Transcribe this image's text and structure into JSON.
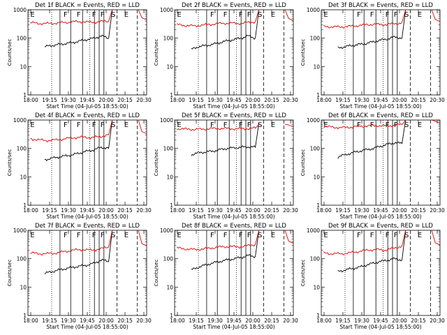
{
  "figure": {
    "xlabel": "Start Time (04-Jul-05 18:55:00)",
    "ylabel": "Counts/sec",
    "x_tick_labels": [
      "18:00",
      "19:15",
      "19:30",
      "19:45",
      "20:00",
      "20:15",
      "20:30"
    ],
    "y_tick_labels": [
      "1",
      "10",
      "100",
      "1000"
    ],
    "colors": {
      "events": "#000000",
      "lld": "#e00000",
      "axes": "#000000"
    }
  },
  "chart_data": [
    {
      "type": "line",
      "title": "Det 1f BLACK = Events, RED = LLD",
      "xlabel": "Start Time (04-Jul-05 18:55:00)",
      "ylabel": "Counts/sec",
      "ylim": [
        1,
        1000
      ],
      "yscale": "log",
      "markers": [
        "E",
        "F",
        "F",
        "F",
        "F",
        "S",
        "E"
      ],
      "series": [
        {
          "name": "BLACK = Events",
          "color": "#000000",
          "values": [
            50,
            55,
            60,
            65,
            70,
            80,
            90,
            100,
            120,
            100,
            1000
          ]
        },
        {
          "name": "RED = LLD",
          "color": "#e00000",
          "values": [
            350,
            330,
            330,
            340,
            360,
            380,
            380,
            360,
            380,
            400,
            1000
          ]
        }
      ]
    },
    {
      "type": "line",
      "title": "Det 2f BLACK = Events, RED = LLD",
      "xlabel": "Start Time (04-Jul-05 18:55:00)",
      "ylabel": "Counts/sec",
      "ylim": [
        1,
        1000
      ],
      "yscale": "log",
      "markers": [
        "E",
        "F",
        "F",
        "F",
        "F",
        "S",
        "E"
      ],
      "series": [
        {
          "name": "BLACK = Events",
          "color": "#000000",
          "values": [
            40,
            50,
            55,
            60,
            70,
            80,
            90,
            100,
            120,
            100,
            1000
          ]
        },
        {
          "name": "RED = LLD",
          "color": "#e00000",
          "values": [
            300,
            280,
            270,
            290,
            310,
            330,
            340,
            330,
            350,
            380,
            1000
          ]
        }
      ]
    },
    {
      "type": "line",
      "title": "Det 3f BLACK = Events, RED = LLD",
      "xlabel": "Start Time (04-Jul-05 18:55:00)",
      "ylabel": "Counts/sec",
      "ylim": [
        1,
        1000
      ],
      "yscale": "log",
      "markers": [
        "E",
        "F",
        "F",
        "F",
        "F",
        "S",
        "E"
      ],
      "series": [
        {
          "name": "BLACK = Events",
          "color": "#000000",
          "values": [
            45,
            50,
            55,
            60,
            65,
            75,
            85,
            95,
            110,
            100,
            1000
          ]
        },
        {
          "name": "RED = LLD",
          "color": "#e00000",
          "values": [
            260,
            250,
            250,
            260,
            280,
            300,
            310,
            300,
            320,
            350,
            1000
          ]
        }
      ]
    },
    {
      "type": "line",
      "title": "Det 4f BLACK = Events, RED = LLD",
      "xlabel": "Start Time (04-Jul-05 18:55:00)",
      "ylabel": "Counts/sec",
      "ylim": [
        1,
        1000
      ],
      "yscale": "log",
      "markers": [
        "E",
        "F",
        "F",
        "F",
        "F",
        "S",
        "E"
      ],
      "series": [
        {
          "name": "BLACK = Events",
          "color": "#000000",
          "values": [
            40,
            45,
            50,
            55,
            60,
            70,
            80,
            90,
            110,
            100,
            1000
          ]
        },
        {
          "name": "RED = LLD",
          "color": "#e00000",
          "values": [
            220,
            200,
            190,
            200,
            220,
            240,
            250,
            240,
            260,
            300,
            1000
          ]
        }
      ]
    },
    {
      "type": "line",
      "title": "Det 5f BLACK = Events, RED = LLD",
      "xlabel": "Start Time (04-Jul-05 18:55:00)",
      "ylabel": "Counts/sec",
      "ylim": [
        1,
        1000
      ],
      "yscale": "log",
      "markers": [
        "E",
        "F",
        "F",
        "F",
        "F",
        "S",
        "E"
      ],
      "series": [
        {
          "name": "BLACK = Events",
          "color": "#000000",
          "values": [
            60,
            70,
            75,
            80,
            90,
            100,
            105,
            110,
            115,
            110,
            800
          ]
        },
        {
          "name": "RED = LLD",
          "color": "#e00000",
          "values": [
            500,
            480,
            470,
            480,
            500,
            510,
            500,
            490,
            500,
            520,
            700
          ]
        }
      ]
    },
    {
      "type": "line",
      "title": "Det 6f BLACK = Events, RED = LLD",
      "xlabel": "Start Time (04-Jul-05 18:55:00)",
      "ylabel": "Counts/sec",
      "ylim": [
        1,
        1000
      ],
      "yscale": "log",
      "markers": [
        "E",
        "F",
        "F",
        "F",
        "F",
        "S",
        "E"
      ],
      "series": [
        {
          "name": "BLACK = Events",
          "color": "#000000",
          "values": [
            50,
            60,
            70,
            80,
            90,
            100,
            120,
            140,
            160,
            150,
            1000
          ]
        },
        {
          "name": "RED = LLD",
          "color": "#e00000",
          "values": [
            600,
            560,
            540,
            560,
            600,
            620,
            640,
            620,
            650,
            700,
            1000
          ]
        }
      ]
    },
    {
      "type": "line",
      "title": "Det 7f BLACK = Events, RED = LLD",
      "xlabel": "Start Time (04-Jul-05 18:55:00)",
      "ylabel": "Counts/sec",
      "ylim": [
        1,
        1000
      ],
      "yscale": "log",
      "markers": [
        "E",
        "F",
        "F",
        "F",
        "F",
        "S",
        "E"
      ],
      "series": [
        {
          "name": "BLACK = Events",
          "color": "#000000",
          "values": [
            30,
            35,
            40,
            45,
            50,
            55,
            60,
            70,
            90,
            80,
            1000
          ]
        },
        {
          "name": "RED = LLD",
          "color": "#e00000",
          "values": [
            160,
            150,
            150,
            160,
            180,
            200,
            210,
            200,
            220,
            260,
            1000
          ]
        }
      ]
    },
    {
      "type": "line",
      "title": "Det 8f BLACK = Events, RED = LLD",
      "xlabel": "Start Time (04-Jul-05 18:55:00)",
      "ylabel": "Counts/sec",
      "ylim": [
        1,
        1000
      ],
      "yscale": "log",
      "markers": [
        "E",
        "F",
        "F",
        "F",
        "F",
        "S",
        "E"
      ],
      "series": [
        {
          "name": "BLACK = Events",
          "color": "#000000",
          "values": [
            40,
            50,
            60,
            70,
            80,
            90,
            100,
            110,
            130,
            120,
            1000
          ]
        },
        {
          "name": "RED = LLD",
          "color": "#e00000",
          "values": [
            240,
            220,
            210,
            220,
            240,
            260,
            270,
            260,
            280,
            320,
            1000
          ]
        }
      ]
    },
    {
      "type": "line",
      "title": "Det 9f BLACK = Events, RED = LLD",
      "xlabel": "Start Time (04-Jul-05 18:55:00)",
      "ylabel": "Counts/sec",
      "ylim": [
        1,
        1000
      ],
      "yscale": "log",
      "markers": [
        "E",
        "F",
        "F",
        "F",
        "F",
        "S",
        "E"
      ],
      "series": [
        {
          "name": "BLACK = Events",
          "color": "#000000",
          "values": [
            35,
            40,
            45,
            50,
            60,
            70,
            80,
            90,
            100,
            90,
            1000
          ]
        },
        {
          "name": "RED = LLD",
          "color": "#e00000",
          "values": [
            160,
            150,
            150,
            160,
            180,
            200,
            210,
            200,
            230,
            280,
            1000
          ]
        }
      ]
    }
  ]
}
